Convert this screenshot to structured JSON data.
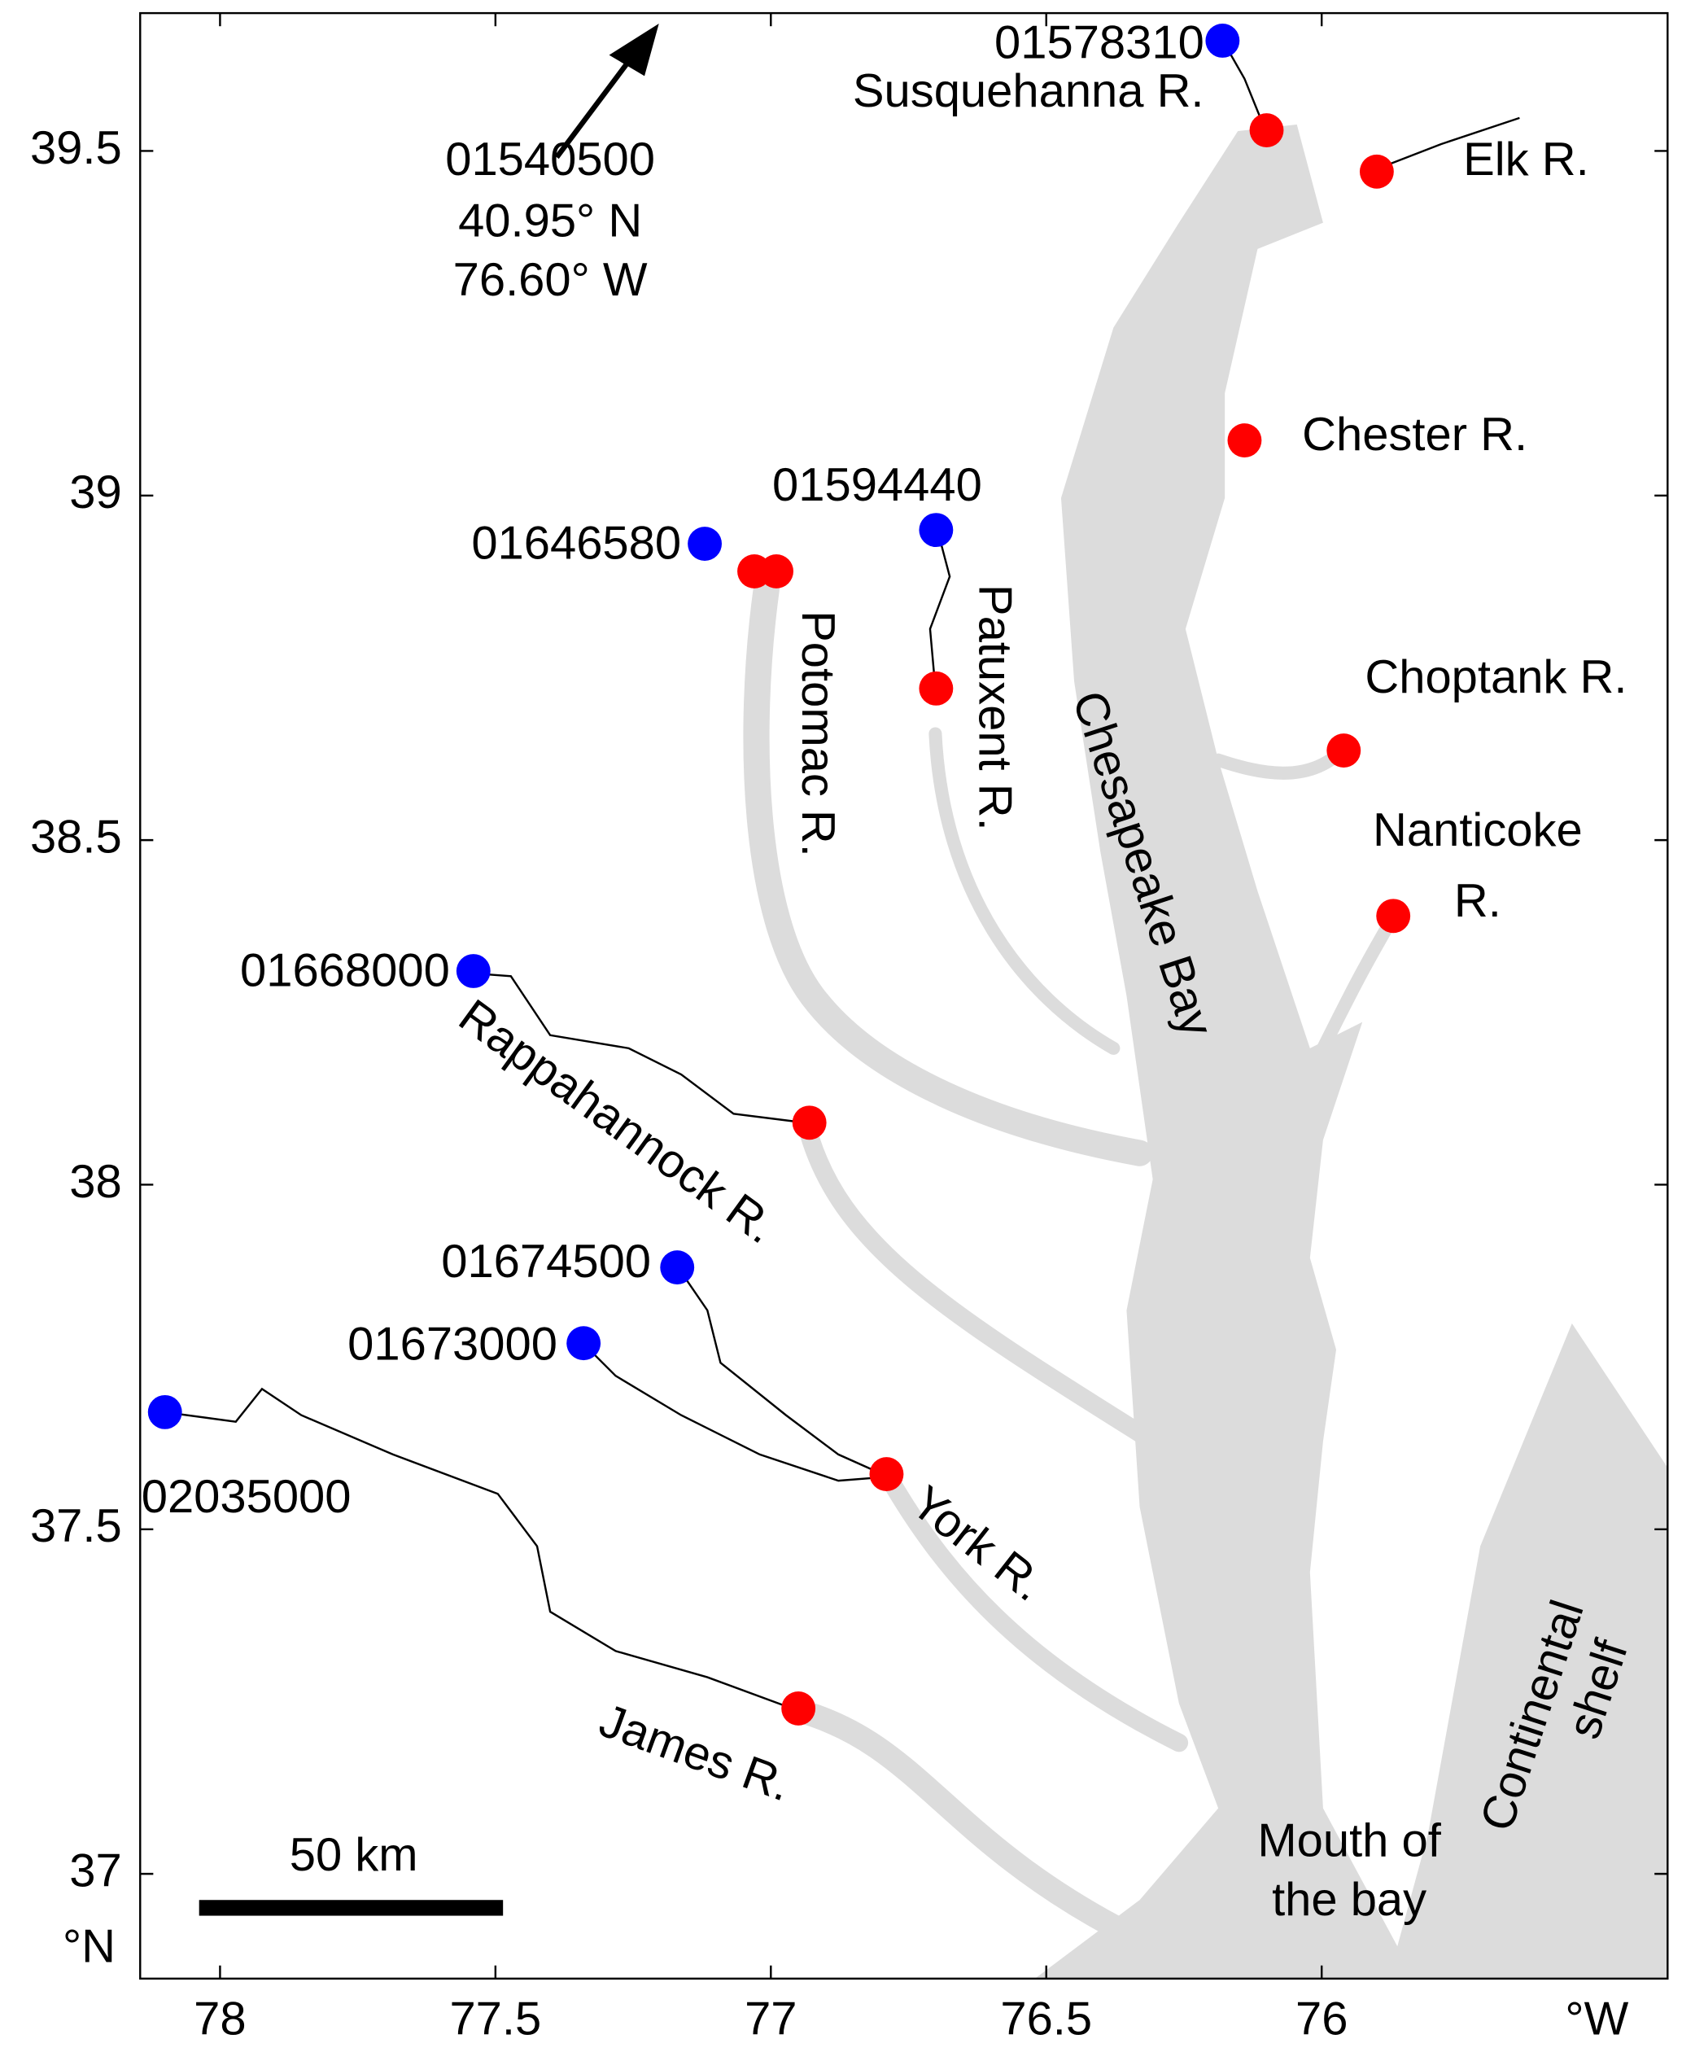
{
  "map": {
    "xlim": [
      78.145,
      75.372
    ],
    "ylim": [
      36.848,
      39.7
    ],
    "xticks": [
      78,
      77.5,
      77,
      76.5,
      76
    ],
    "yticks": [
      37,
      37.5,
      38,
      38.5,
      39,
      39.5
    ],
    "x_unit": "°W",
    "y_unit": "°N",
    "scale_bar": "50 km",
    "stations": {
      "color": "#0000ff",
      "points": [
        {
          "id": "01578310",
          "lon": 76.18,
          "lat": 39.66
        },
        {
          "id": "01646580",
          "lon": 77.12,
          "lat": 38.93
        },
        {
          "id": "01594440",
          "lon": 76.7,
          "lat": 38.95
        },
        {
          "id": "01668000",
          "lon": 77.54,
          "lat": 38.31
        },
        {
          "id": "01674500",
          "lon": 77.17,
          "lat": 37.88
        },
        {
          "id": "01673000",
          "lon": 77.34,
          "lat": 37.77
        },
        {
          "id": "02035000",
          "lon": 78.1,
          "lat": 37.67
        }
      ]
    },
    "sites": {
      "color": "#ff0000",
      "points": [
        {
          "lon": 76.1,
          "lat": 39.53
        },
        {
          "lon": 75.9,
          "lat": 39.47
        },
        {
          "lon": 76.14,
          "lat": 39.08
        },
        {
          "lon": 77.03,
          "lat": 38.89
        },
        {
          "lon": 76.99,
          "lat": 38.89
        },
        {
          "lon": 76.7,
          "lat": 38.72
        },
        {
          "lon": 75.96,
          "lat": 38.63
        },
        {
          "lon": 75.87,
          "lat": 38.39
        },
        {
          "lon": 76.93,
          "lat": 38.09
        },
        {
          "lon": 76.79,
          "lat": 37.58
        },
        {
          "lon": 76.95,
          "lat": 37.24
        }
      ]
    },
    "offmap_station": {
      "id": "01540500",
      "lat_label": "40.95° N",
      "lon_label": "76.60° W"
    },
    "labels": [
      "Susquehanna R.",
      "Elk R.",
      "Chester R.",
      "Choptank R.",
      "Nanticoke",
      "R.",
      "Potomac R.",
      "Patuxent R.",
      "Chesapeake Bay",
      "Rappahannock R.",
      "York R.",
      "James R.",
      "Continental",
      "shelf",
      "Mouth of",
      "the bay"
    ]
  }
}
